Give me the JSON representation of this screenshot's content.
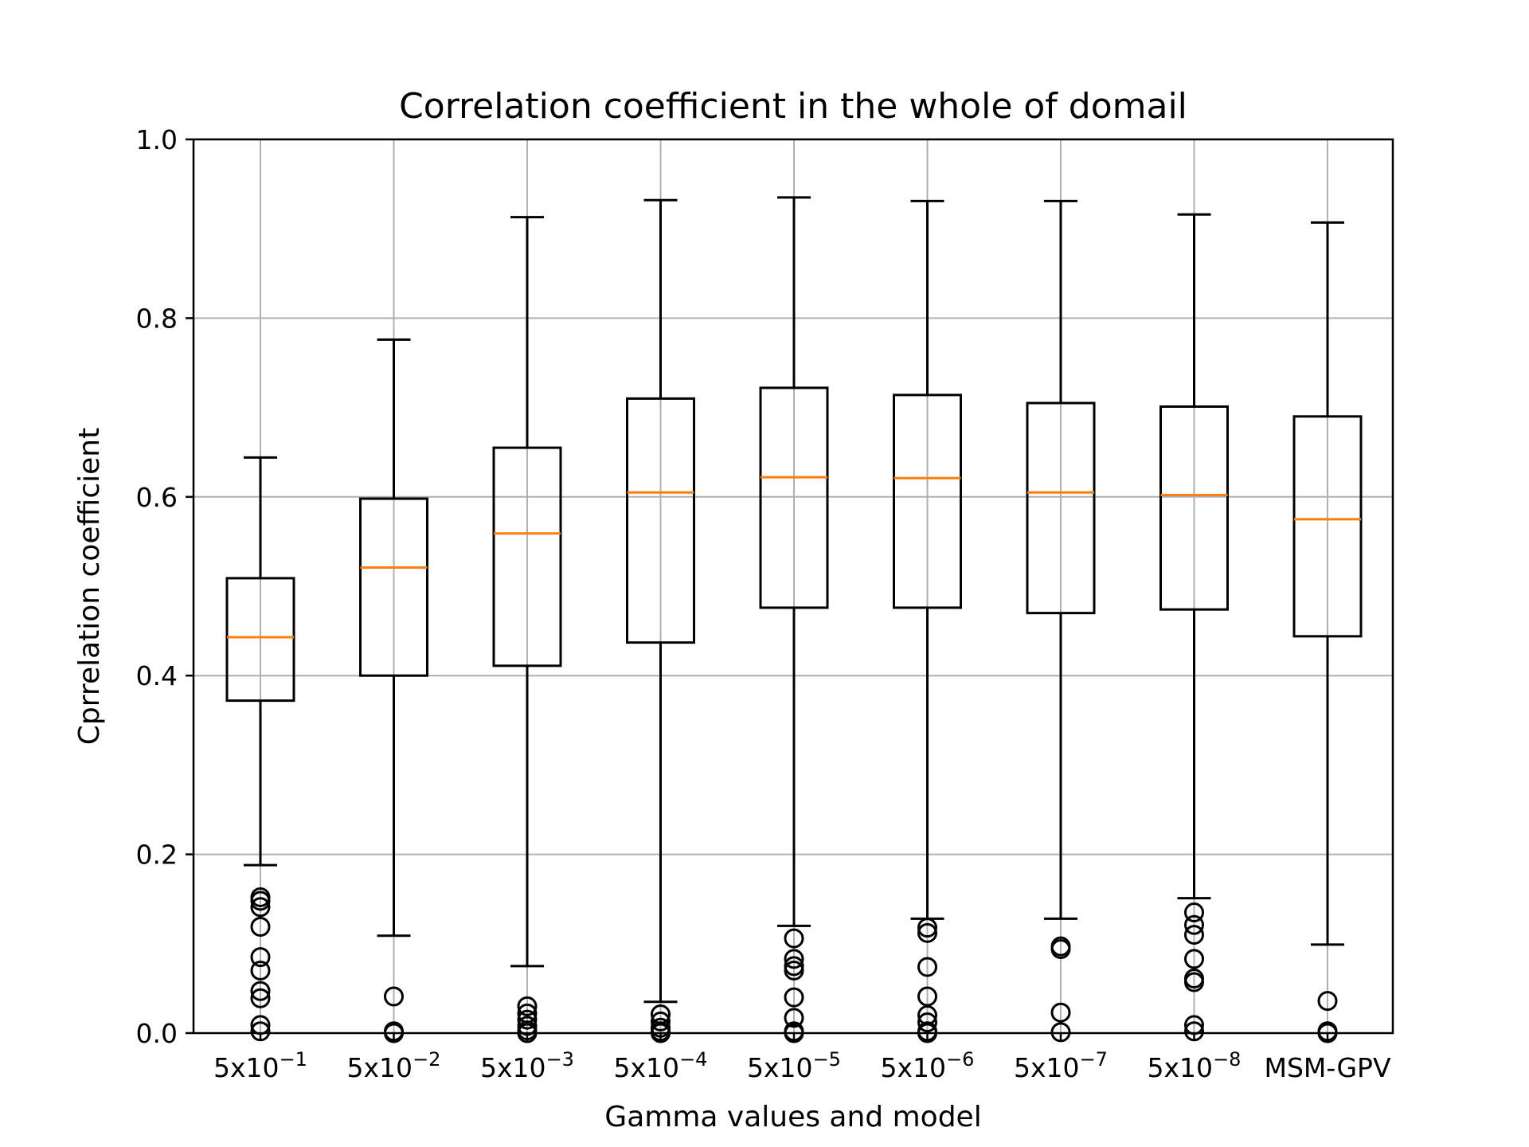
{
  "chart_data": {
    "type": "boxplot",
    "title": "Correlation coefficient in the whole of domail",
    "xlabel": "Gamma values and model",
    "ylabel": "Cprrelation coefficient",
    "ylim": [
      0.0,
      1.0
    ],
    "yticks": [
      "0.0",
      "0.2",
      "0.4",
      "0.6",
      "0.8",
      "1.0"
    ],
    "grid": true,
    "median_color": "#ff7f0e",
    "categories": [
      {
        "base": "5x10",
        "exp": "−1"
      },
      {
        "base": "5x10",
        "exp": "−2"
      },
      {
        "base": "5x10",
        "exp": "−3"
      },
      {
        "base": "5x10",
        "exp": "−4"
      },
      {
        "base": "5x10",
        "exp": "−5"
      },
      {
        "base": "5x10",
        "exp": "−6"
      },
      {
        "base": "5x10",
        "exp": "−7"
      },
      {
        "base": "5x10",
        "exp": "−8"
      },
      {
        "base": "MSM-GPV",
        "exp": ""
      }
    ],
    "boxes": [
      {
        "whislo": 0.188,
        "q1": 0.372,
        "med": 0.443,
        "q3": 0.509,
        "whishi": 0.644,
        "fliers": [
          0.152,
          0.148,
          0.141,
          0.119,
          0.085,
          0.07,
          0.047,
          0.039,
          0.009,
          0.002
        ]
      },
      {
        "whislo": 0.109,
        "q1": 0.4,
        "med": 0.521,
        "q3": 0.598,
        "whishi": 0.776,
        "fliers": [
          0.041,
          0.002,
          0.0
        ]
      },
      {
        "whislo": 0.075,
        "q1": 0.411,
        "med": 0.559,
        "q3": 0.655,
        "whishi": 0.913,
        "fliers": [
          0.03,
          0.022,
          0.015,
          0.008,
          0.003,
          0.0
        ]
      },
      {
        "whislo": 0.035,
        "q1": 0.437,
        "med": 0.605,
        "q3": 0.71,
        "whishi": 0.932,
        "fliers": [
          0.021,
          0.013,
          0.006,
          0.002,
          0.0
        ]
      },
      {
        "whislo": 0.12,
        "q1": 0.476,
        "med": 0.622,
        "q3": 0.722,
        "whishi": 0.935,
        "fliers": [
          0.106,
          0.083,
          0.075,
          0.07,
          0.04,
          0.017,
          0.002,
          0.0
        ]
      },
      {
        "whislo": 0.128,
        "q1": 0.476,
        "med": 0.621,
        "q3": 0.714,
        "whishi": 0.931,
        "fliers": [
          0.118,
          0.112,
          0.074,
          0.041,
          0.02,
          0.012,
          0.002,
          0.0
        ]
      },
      {
        "whislo": 0.128,
        "q1": 0.47,
        "med": 0.605,
        "q3": 0.705,
        "whishi": 0.931,
        "fliers": [
          0.097,
          0.094,
          0.023,
          0.001
        ]
      },
      {
        "whislo": 0.151,
        "q1": 0.474,
        "med": 0.602,
        "q3": 0.701,
        "whishi": 0.916,
        "fliers": [
          0.135,
          0.121,
          0.11,
          0.083,
          0.061,
          0.057,
          0.009,
          0.002
        ]
      },
      {
        "whislo": 0.099,
        "q1": 0.444,
        "med": 0.575,
        "q3": 0.69,
        "whishi": 0.907,
        "fliers": [
          0.036,
          0.002,
          0.0
        ]
      }
    ]
  }
}
